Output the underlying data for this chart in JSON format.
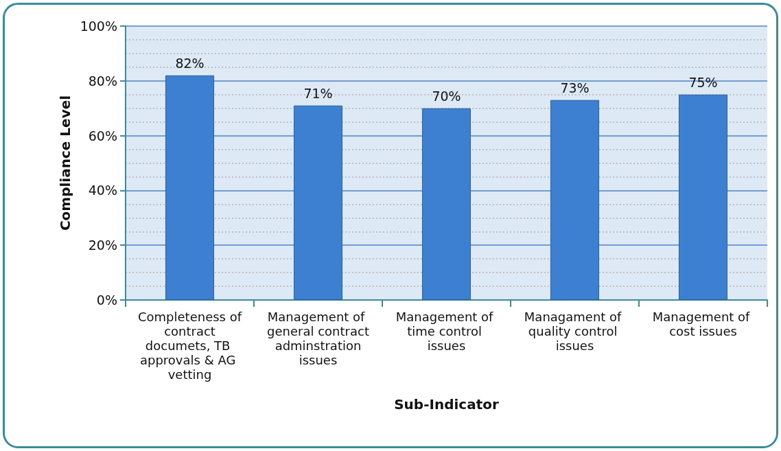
{
  "chart_data": {
    "type": "bar",
    "categories": [
      "Completeness of contract documets, TB approvals & AG vetting",
      "Management of general contract adminstration issues",
      "Management of time control issues",
      "Managament of quality control issues",
      "Management of cost issues"
    ],
    "values": [
      82,
      71,
      70,
      73,
      75
    ],
    "color": "#3d80d2",
    "value_labels": [
      "82%",
      "71%",
      "70%",
      "73%",
      "75%"
    ],
    "xlabel": "Sub-Indicator",
    "ylabel": "Compliance Level",
    "ylim": [
      0,
      100
    ],
    "yticks": [
      {
        "value": 0,
        "label": "0%"
      },
      {
        "value": 5,
        "label": null
      },
      {
        "value": 10,
        "label": null
      },
      {
        "value": 15,
        "label": null
      },
      {
        "value": 20,
        "label": "20%"
      },
      {
        "value": 25,
        "label": null
      },
      {
        "value": 30,
        "label": null
      },
      {
        "value": 35,
        "label": null
      },
      {
        "value": 40,
        "label": "40%"
      },
      {
        "value": 45,
        "label": null
      },
      {
        "value": 50,
        "label": null
      },
      {
        "value": 55,
        "label": null
      },
      {
        "value": 60,
        "label": "60%"
      },
      {
        "value": 65,
        "label": null
      },
      {
        "value": 70,
        "label": null
      },
      {
        "value": 75,
        "label": null
      },
      {
        "value": 80,
        "label": "80%"
      },
      {
        "value": 85,
        "label": null
      },
      {
        "value": 90,
        "label": null
      },
      {
        "value": 95,
        "label": null
      },
      {
        "value": 100,
        "label": "100%"
      }
    ],
    "grid": "y"
  }
}
